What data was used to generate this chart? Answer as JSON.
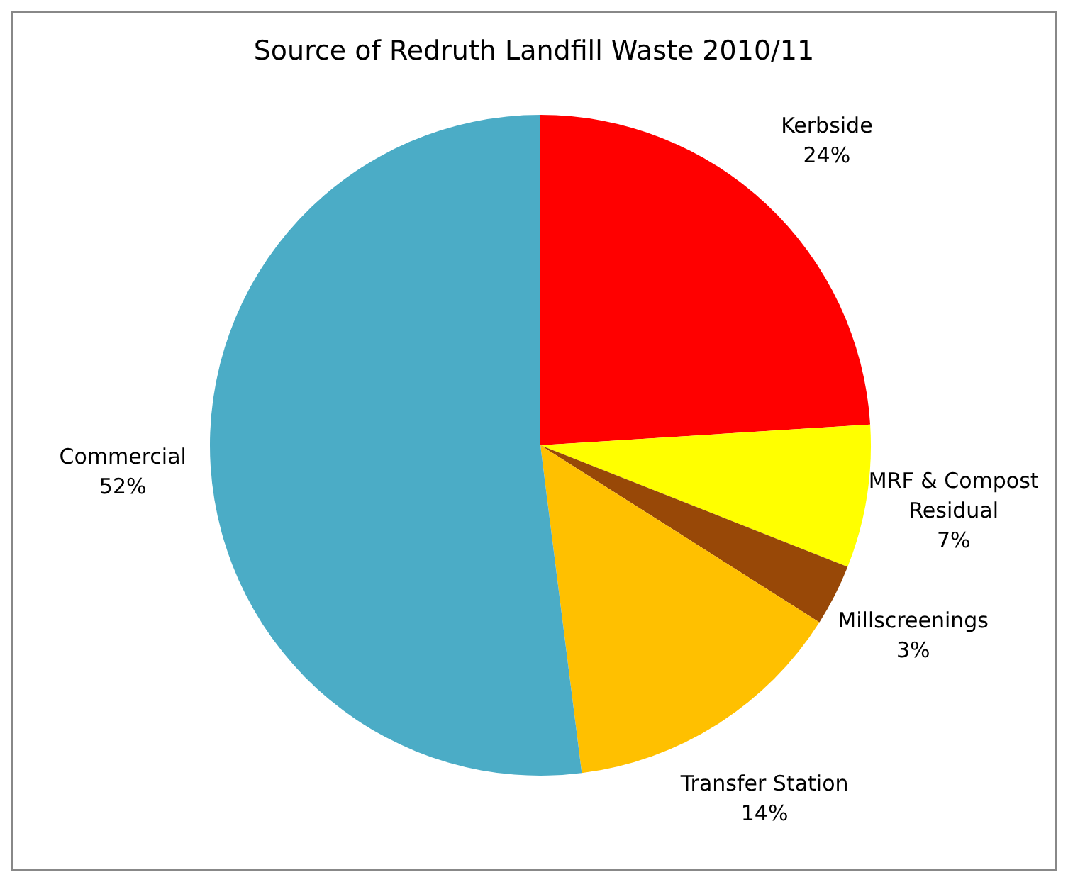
{
  "chart_data": {
    "type": "pie",
    "title": "Source of Redruth Landfill Waste 2010/11",
    "categories": [
      "Kerbside",
      "MRF & Compost Residual",
      "Millscreenings",
      "Transfer Station",
      "Commercial"
    ],
    "values": [
      24,
      7,
      3,
      14,
      52
    ],
    "value_labels": [
      "24%",
      "7%",
      "3%",
      "14%",
      "52%"
    ],
    "colors": [
      "#ff0000",
      "#ffff00",
      "#984807",
      "#ffc000",
      "#4bacc6"
    ],
    "legend": false
  }
}
